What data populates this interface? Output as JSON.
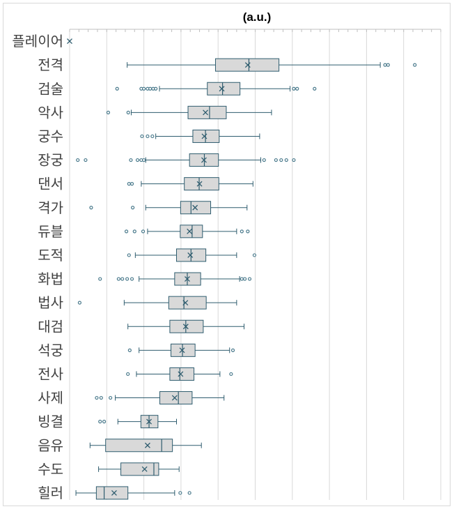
{
  "chart_data": {
    "type": "box",
    "orientation": "horizontal",
    "title": "(a.u.)",
    "xlabel": "",
    "ylabel": "",
    "xlim": [
      0,
      10
    ],
    "grid": true,
    "legend": "none",
    "colors": {
      "box_fill": "#d9d9d9",
      "box_stroke": "#2e5c6e",
      "mean_marker": "#2e5c6e",
      "outlier": "#4a7a8c",
      "grid": "#d9d9d9"
    },
    "categories": [
      "플레이어",
      "전격",
      "검술",
      "악사",
      "궁수",
      "장궁",
      "댄서",
      "격가",
      "듀블",
      "도적",
      "화법",
      "법사",
      "대검",
      "석궁",
      "전사",
      "사제",
      "빙결",
      "음유",
      "수도",
      "힐러"
    ],
    "boxes": [
      {
        "name": "플레이어",
        "min": null,
        "q1": null,
        "median": null,
        "q3": null,
        "max": null,
        "mean": 0.0,
        "outliers": []
      },
      {
        "name": "전격",
        "min": 1.55,
        "q1": 3.93,
        "median": 4.83,
        "q3": 5.64,
        "max": 8.37,
        "mean": 4.8,
        "outliers": [
          8.5,
          8.58,
          9.3
        ]
      },
      {
        "name": "검술",
        "min": 2.42,
        "q1": 3.71,
        "median": 4.12,
        "q3": 4.59,
        "max": 5.94,
        "mean": 4.1,
        "outliers": [
          1.28,
          1.93,
          2.0,
          2.1,
          2.17,
          2.25,
          2.32,
          6.04,
          6.13,
          6.6
        ]
      },
      {
        "name": "악사",
        "min": 1.66,
        "q1": 3.19,
        "median": 3.77,
        "q3": 4.22,
        "max": 5.44,
        "mean": 3.66,
        "outliers": [
          1.04,
          1.58
        ]
      },
      {
        "name": "궁수",
        "min": 2.32,
        "q1": 3.32,
        "median": 3.66,
        "q3": 4.03,
        "max": 5.12,
        "mean": 3.63,
        "outliers": [
          1.95,
          2.1,
          2.23
        ]
      },
      {
        "name": "장궁",
        "min": 2.05,
        "q1": 3.23,
        "median": 3.63,
        "q3": 4.01,
        "max": 5.15,
        "mean": 3.62,
        "outliers": [
          0.22,
          0.43,
          1.65,
          1.83,
          1.93,
          2.0,
          5.24,
          5.56,
          5.7,
          5.84,
          6.04
        ]
      },
      {
        "name": "댄서",
        "min": 1.93,
        "q1": 3.09,
        "median": 3.49,
        "q3": 4.02,
        "max": 4.94,
        "mean": 3.5,
        "outliers": [
          1.6,
          1.68
        ]
      },
      {
        "name": "격가",
        "min": 2.05,
        "q1": 2.99,
        "median": 3.27,
        "q3": 3.8,
        "max": 4.78,
        "mean": 3.38,
        "outliers": [
          0.58,
          1.7
        ]
      },
      {
        "name": "듀블",
        "min": 2.1,
        "q1": 2.98,
        "median": 3.3,
        "q3": 3.58,
        "max": 4.5,
        "mean": 3.23,
        "outliers": [
          1.53,
          1.75,
          1.98,
          4.64,
          4.8
        ]
      },
      {
        "name": "도적",
        "min": 1.77,
        "q1": 2.88,
        "median": 3.27,
        "q3": 3.67,
        "max": 4.5,
        "mean": 3.25,
        "outliers": [
          1.6,
          4.98
        ]
      },
      {
        "name": "화법",
        "min": 1.87,
        "q1": 2.83,
        "median": 3.17,
        "q3": 3.53,
        "max": 4.58,
        "mean": 3.17,
        "outliers": [
          0.82,
          1.32,
          1.42,
          1.55,
          1.68,
          4.64,
          4.72,
          4.85
        ]
      },
      {
        "name": "법사",
        "min": 1.47,
        "q1": 2.67,
        "median": 3.08,
        "q3": 3.68,
        "max": 4.5,
        "mean": 3.12,
        "outliers": [
          0.27
        ]
      },
      {
        "name": "대검",
        "min": 1.57,
        "q1": 2.7,
        "median": 3.13,
        "q3": 3.6,
        "max": 4.7,
        "mean": 3.13,
        "outliers": []
      },
      {
        "name": "석궁",
        "min": 1.87,
        "q1": 2.73,
        "median": 3.04,
        "q3": 3.38,
        "max": 4.31,
        "mean": 3.03,
        "outliers": [
          1.62,
          4.4
        ]
      },
      {
        "name": "전사",
        "min": 1.8,
        "q1": 2.7,
        "median": 2.97,
        "q3": 3.35,
        "max": 4.05,
        "mean": 2.99,
        "outliers": [
          1.57,
          4.35
        ]
      },
      {
        "name": "사제",
        "min": 1.23,
        "q1": 2.43,
        "median": 2.93,
        "q3": 3.3,
        "max": 4.16,
        "mean": 2.83,
        "outliers": [
          0.73,
          0.85,
          1.1
        ]
      },
      {
        "name": "빙결",
        "min": 1.3,
        "q1": 1.92,
        "median": 2.14,
        "q3": 2.38,
        "max": 2.88,
        "mean": 2.14,
        "outliers": [
          0.82,
          0.93
        ]
      },
      {
        "name": "음유",
        "min": 0.55,
        "q1": 0.97,
        "median": 2.48,
        "q3": 2.77,
        "max": 3.55,
        "mean": 2.1,
        "outliers": []
      },
      {
        "name": "수도",
        "min": 0.78,
        "q1": 1.38,
        "median": 2.27,
        "q3": 2.4,
        "max": 2.95,
        "mean": 2.02,
        "outliers": []
      },
      {
        "name": "힐러",
        "min": 0.17,
        "q1": 0.72,
        "median": 0.93,
        "q3": 1.57,
        "max": 2.83,
        "mean": 1.2,
        "outliers": [
          2.98,
          3.23
        ]
      }
    ]
  }
}
